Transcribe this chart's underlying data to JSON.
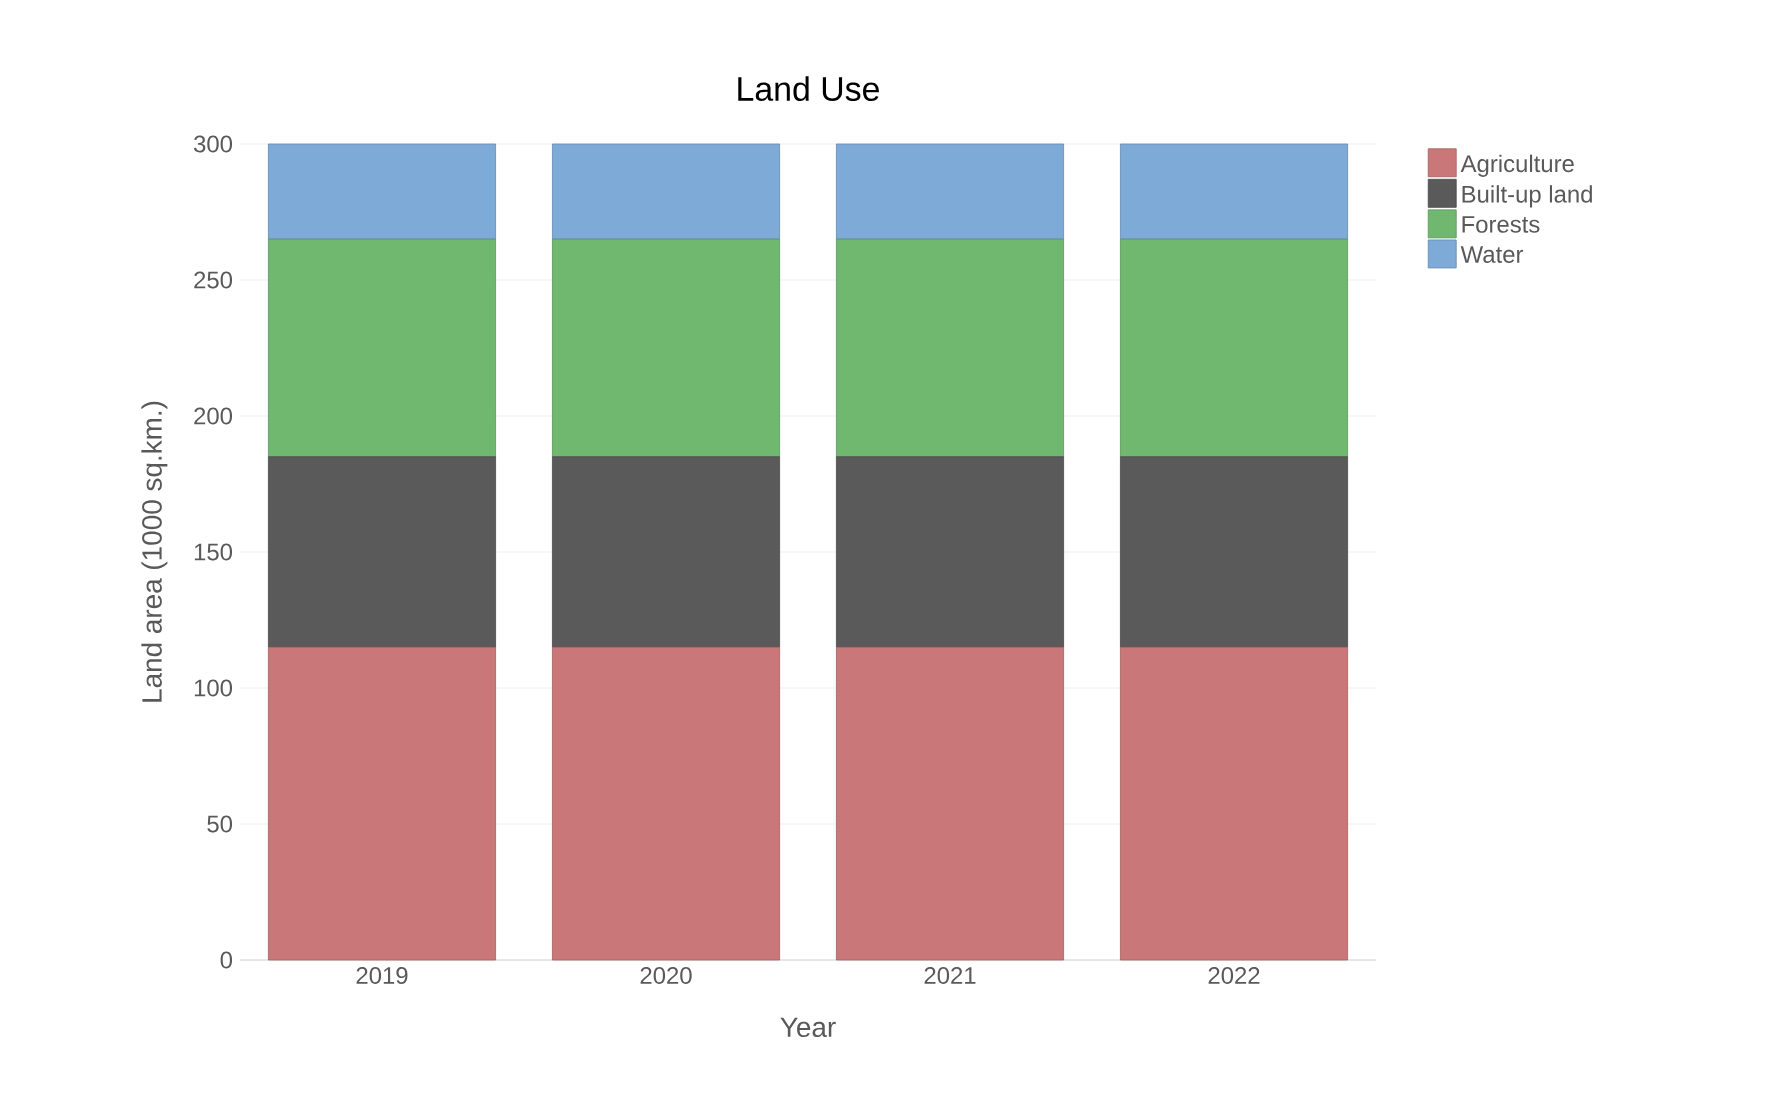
{
  "chart_data": {
    "type": "bar",
    "title": "Land Use",
    "xlabel": "Year",
    "ylabel": "Land area (1000 sq.km.)",
    "categories": [
      "2019",
      "2020",
      "2021",
      "2022"
    ],
    "stacked": true,
    "ylim": [
      0,
      300
    ],
    "yticks": [
      0,
      50,
      100,
      150,
      200,
      250,
      300
    ],
    "grid": "y",
    "legend": "top right",
    "series": [
      {
        "name": "Agriculture",
        "color": "#c97778",
        "values": [
          115,
          115,
          115,
          115
        ]
      },
      {
        "name": "Built-up land",
        "color": "#5a5a5a",
        "values": [
          70,
          70,
          70,
          70
        ]
      },
      {
        "name": "Forests",
        "color": "#70b86f",
        "values": [
          80,
          80,
          80,
          80
        ]
      },
      {
        "name": "Water",
        "color": "#7eaad8",
        "values": [
          35,
          35,
          35,
          35
        ]
      }
    ]
  }
}
